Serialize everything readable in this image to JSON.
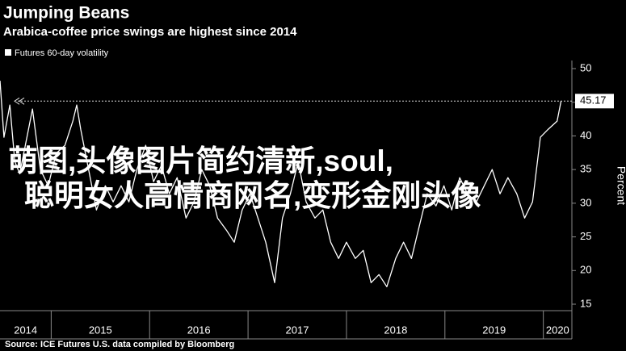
{
  "chart_data": {
    "type": "line",
    "title": "Jumping Beans",
    "subtitle": "Arabica-coffee price swings are highest since 2014",
    "source": "Source: ICE Futures U.S. data compiled by Bloomberg",
    "y_label": "Percent",
    "overlay_text": [
      "萌图,头像图片简约清新,soul,",
      "聪明女人高情商网名,变形金刚头像"
    ],
    "overlay_color": "#e8168a",
    "x": [
      2014.48,
      2014.52,
      2014.58,
      2014.63,
      2014.68,
      2014.77,
      2014.81,
      2014.89,
      2014.97,
      2015.05,
      2015.14,
      2015.22,
      2015.26,
      2015.3,
      2015.38,
      2015.46,
      2015.55,
      2015.63,
      2015.71,
      2015.79,
      2015.87,
      2015.96,
      2016.04,
      2016.12,
      2016.2,
      2016.28,
      2016.37,
      2016.45,
      2016.53,
      2016.61,
      2016.69,
      2016.78,
      2016.86,
      2016.94,
      2017.02,
      2017.1,
      2017.18,
      2017.27,
      2017.35,
      2017.43,
      2017.51,
      2017.59,
      2017.68,
      2017.76,
      2017.84,
      2017.92,
      2018.0,
      2018.09,
      2018.17,
      2018.25,
      2018.33,
      2018.41,
      2018.5,
      2018.58,
      2018.66,
      2018.74,
      2018.82,
      2018.91,
      2018.99,
      2019.07,
      2019.15,
      2019.23,
      2019.32,
      2019.4,
      2019.48,
      2019.56,
      2019.64,
      2019.73,
      2019.81,
      2019.89,
      2019.97,
      2020.05,
      2020.14,
      2020.18
    ],
    "series": [
      {
        "name": "Futures 60-day volatility",
        "color": "#ffffff",
        "values": [
          48.2,
          39.8,
          44.6,
          36.2,
          34.4,
          41,
          44,
          35,
          32.6,
          37.4,
          38.6,
          42.2,
          44.6,
          41,
          35,
          29,
          32.6,
          30.2,
          32.6,
          30.2,
          35,
          38.6,
          33.2,
          35.6,
          31.4,
          33.8,
          27.8,
          30.2,
          35,
          32.6,
          27.8,
          26,
          24.2,
          29,
          31.4,
          27.8,
          24.2,
          18.2,
          27.8,
          31.4,
          36.2,
          30.2,
          27.8,
          29,
          24.2,
          21.8,
          24.2,
          21.8,
          23,
          18.2,
          19.4,
          17.6,
          21.8,
          24.2,
          21.8,
          26.6,
          31.4,
          29.6,
          32.6,
          29,
          33.8,
          31.4,
          30.2,
          32.6,
          35,
          31.4,
          33.8,
          31.4,
          27.8,
          30.2,
          39.8,
          41,
          42.2,
          45.17
        ]
      }
    ],
    "last_value": 45.17,
    "xlim": [
      2014.48,
      2020.29
    ],
    "xticks": [
      2014,
      2015,
      2016,
      2017,
      2018,
      2019,
      2020
    ],
    "ylim": [
      15,
      50
    ],
    "yticks": [
      15,
      20,
      25,
      30,
      35,
      40,
      45,
      50
    ],
    "grid": false
  }
}
